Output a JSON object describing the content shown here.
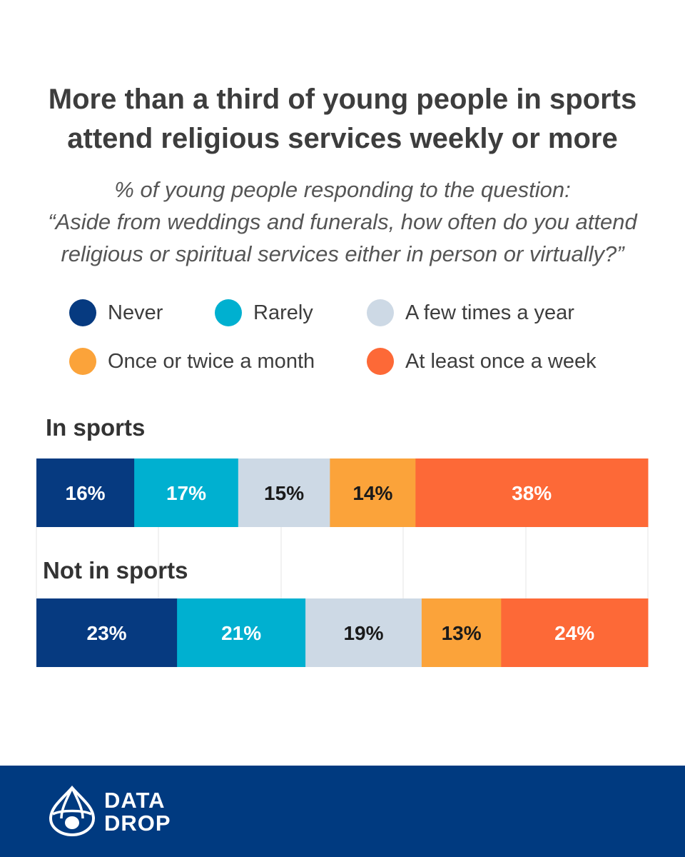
{
  "title": {
    "line1": "More than a third of young people in sports",
    "line2": "attend religious services weekly or more"
  },
  "subtitle": {
    "line1": "% of young people responding to the question:",
    "line2": "“Aside from weddings and funerals, how often do you attend",
    "line3": "religious or spiritual services either in person or virtually?”"
  },
  "legend": [
    {
      "label": "Never",
      "color": "#063a80"
    },
    {
      "label": "Rarely",
      "color": "#00b0d0"
    },
    {
      "label": "A few times a year",
      "color": "#cdd9e5"
    },
    {
      "label": "Once or twice a month",
      "color": "#fba33a"
    },
    {
      "label": "At least once a week",
      "color": "#fd6937"
    }
  ],
  "chart_data": {
    "type": "bar",
    "orientation": "horizontal",
    "stacked": true,
    "categories": [
      "In sports",
      "Not in sports"
    ],
    "series": [
      {
        "name": "Never",
        "values": [
          16,
          23
        ],
        "labels": [
          "16%",
          "23%"
        ],
        "color": "#063a80",
        "label_color": "#ffffff"
      },
      {
        "name": "Rarely",
        "values": [
          17,
          21
        ],
        "labels": [
          "17%",
          "21%"
        ],
        "color": "#00b0d0",
        "label_color": "#ffffff"
      },
      {
        "name": "A few times a year",
        "values": [
          15,
          19
        ],
        "labels": [
          "15%",
          "19%"
        ],
        "color": "#cdd9e5",
        "label_color": "#1a1a1a"
      },
      {
        "name": "Once or twice a month",
        "values": [
          14,
          13
        ],
        "labels": [
          "14%",
          "13%"
        ],
        "color": "#fba33a",
        "label_color": "#1a1a1a"
      },
      {
        "name": "At least once a week",
        "values": [
          38,
          24
        ],
        "labels": [
          "38%",
          "24%"
        ],
        "color": "#fd6937",
        "label_color": "#ffffff"
      }
    ],
    "xlim": [
      0,
      100
    ],
    "grid": true,
    "title": "More than a third of young people in sports attend religious services weekly or more"
  },
  "footer": {
    "logo_line1": "DATA",
    "logo_line2": "DROP",
    "background": "#003a80"
  }
}
